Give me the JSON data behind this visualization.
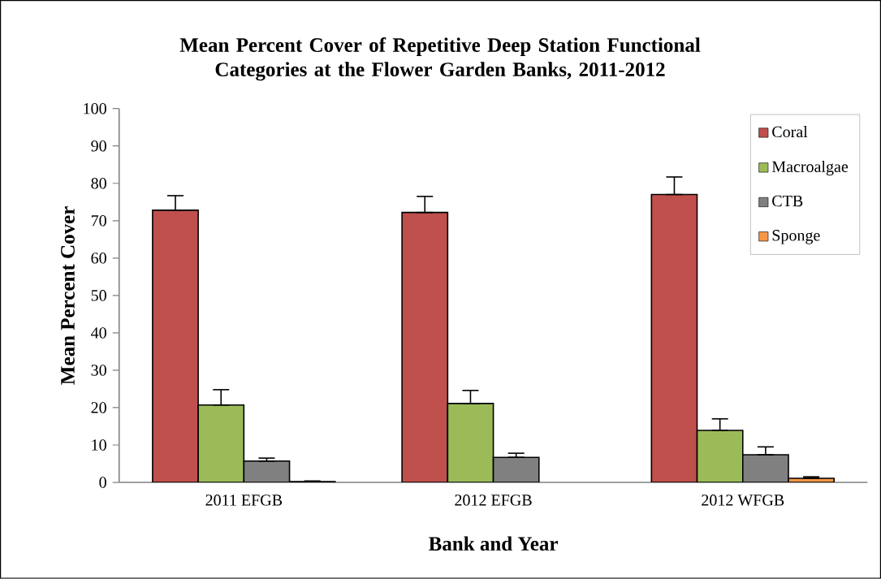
{
  "chart_data": {
    "type": "bar",
    "title": "Mean Percent Cover of Repetitive Deep Station Functional Categories at the Flower Garden Banks, 2011-2012",
    "xlabel": "Bank and Year",
    "ylabel": "Mean Percent Cover",
    "categories": [
      "2011 EFGB",
      "2012 EFGB",
      "2012 WFGB"
    ],
    "series": [
      {
        "name": "Coral",
        "color": "#c0504d",
        "values": [
          72.8,
          72.2,
          77.0
        ],
        "errors": [
          [
            72.8,
            76.7
          ],
          [
            72.2,
            76.5
          ],
          [
            77.0,
            81.7
          ]
        ]
      },
      {
        "name": "Macroalgae",
        "color": "#9bbb59",
        "values": [
          20.7,
          21.1,
          13.9
        ],
        "errors": [
          [
            20.7,
            24.8
          ],
          [
            21.1,
            24.6
          ],
          [
            13.9,
            17.0
          ]
        ]
      },
      {
        "name": "CTB",
        "color": "#808080",
        "values": [
          5.7,
          6.7,
          7.4
        ],
        "errors": [
          [
            5.7,
            6.5
          ],
          [
            6.7,
            7.8
          ],
          [
            7.4,
            9.5
          ]
        ]
      },
      {
        "name": "Sponge",
        "color": "#f79646",
        "values": [
          0.2,
          null,
          1.1
        ],
        "errors": [
          [
            0.2,
            0.4
          ],
          null,
          [
            1.1,
            1.5
          ]
        ]
      }
    ],
    "ylim": [
      0,
      100
    ],
    "yticks": [
      0,
      10,
      20,
      30,
      40,
      50,
      60,
      70,
      80,
      90,
      100
    ],
    "legend": "top right"
  }
}
